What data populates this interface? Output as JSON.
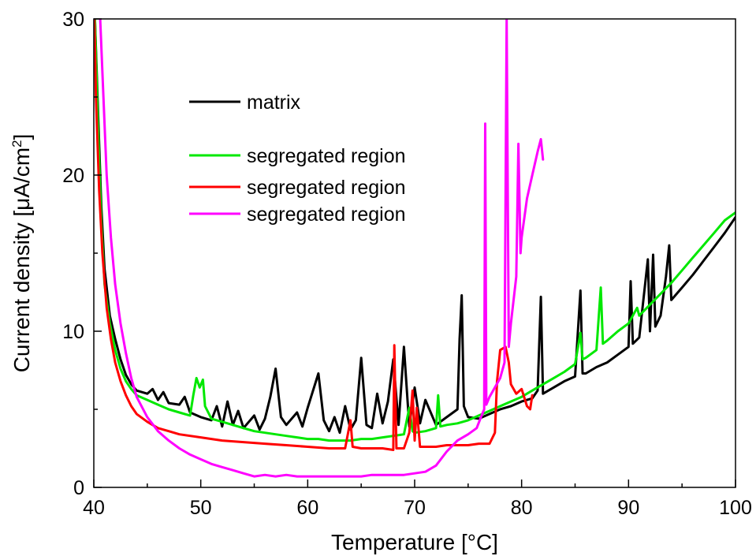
{
  "chart_data": {
    "type": "line",
    "xlabel": "Temperature [°C]",
    "ylabel": {
      "main": "Current density [μA/cm",
      "sup": "2",
      "end": "]"
    },
    "xlim": [
      40,
      100
    ],
    "ylim": [
      0,
      30
    ],
    "x_ticks": [
      40,
      50,
      60,
      70,
      80,
      90,
      100
    ],
    "y_ticks": [
      0,
      10,
      20,
      30
    ],
    "x_tick_labels": [
      "40",
      "50",
      "60",
      "70",
      "80",
      "90",
      "100"
    ],
    "y_tick_labels": [
      "0",
      "10",
      "20",
      "30"
    ],
    "grid": false,
    "legend_position": "upper-left-inside",
    "series": [
      {
        "name": "matrix",
        "color": "#000000",
        "points": [
          [
            40.1,
            30
          ],
          [
            40.4,
            24
          ],
          [
            40.7,
            18
          ],
          [
            41.0,
            14
          ],
          [
            41.5,
            11
          ],
          [
            42.0,
            9.5
          ],
          [
            42.5,
            8.2
          ],
          [
            43.0,
            7.2
          ],
          [
            43.5,
            6.6
          ],
          [
            44,
            6.2
          ],
          [
            45,
            6.0
          ],
          [
            45.5,
            6.3
          ],
          [
            46,
            5.6
          ],
          [
            46.5,
            6.1
          ],
          [
            47,
            5.4
          ],
          [
            48,
            5.3
          ],
          [
            48.5,
            5.8
          ],
          [
            49,
            4.8
          ],
          [
            50,
            4.5
          ],
          [
            51,
            4.3
          ],
          [
            51.5,
            5.2
          ],
          [
            52,
            3.9
          ],
          [
            52.5,
            5.5
          ],
          [
            53,
            4.0
          ],
          [
            53.5,
            4.9
          ],
          [
            54,
            3.8
          ],
          [
            55,
            4.6
          ],
          [
            55.5,
            3.7
          ],
          [
            56,
            4.4
          ],
          [
            56.5,
            5.8
          ],
          [
            57,
            7.6
          ],
          [
            57.5,
            4.5
          ],
          [
            58,
            4.0
          ],
          [
            59,
            4.8
          ],
          [
            59.5,
            3.9
          ],
          [
            60,
            5.1
          ],
          [
            61,
            7.3
          ],
          [
            61.5,
            4.3
          ],
          [
            62,
            3.6
          ],
          [
            62.5,
            4.5
          ],
          [
            63,
            3.5
          ],
          [
            63.5,
            5.2
          ],
          [
            64,
            3.7
          ],
          [
            64.5,
            4.3
          ],
          [
            65,
            8.3
          ],
          [
            65.5,
            4.0
          ],
          [
            66,
            3.8
          ],
          [
            66.5,
            6.0
          ],
          [
            67,
            4.1
          ],
          [
            67.5,
            5.5
          ],
          [
            68,
            8.2
          ],
          [
            68.5,
            4.0
          ],
          [
            69,
            9.0
          ],
          [
            69.5,
            3.9
          ],
          [
            70,
            6.4
          ],
          [
            70.5,
            4.1
          ],
          [
            71,
            5.6
          ],
          [
            72,
            4.0
          ],
          [
            73,
            4.5
          ],
          [
            74,
            5.0
          ],
          [
            74.2,
            9.5
          ],
          [
            74.4,
            12.3
          ],
          [
            74.6,
            5.2
          ],
          [
            75,
            4.5
          ],
          [
            76,
            4.4
          ],
          [
            77,
            4.7
          ],
          [
            78,
            5.0
          ],
          [
            79,
            5.2
          ],
          [
            80,
            5.5
          ],
          [
            81,
            5.7
          ],
          [
            81.5,
            6.2
          ],
          [
            81.8,
            12.2
          ],
          [
            82,
            6.0
          ],
          [
            83,
            6.4
          ],
          [
            84,
            6.8
          ],
          [
            85,
            7.1
          ],
          [
            85.5,
            12.6
          ],
          [
            85.7,
            7.3
          ],
          [
            86,
            7.3
          ],
          [
            87,
            7.7
          ],
          [
            88,
            8.0
          ],
          [
            89,
            8.5
          ],
          [
            90,
            9.0
          ],
          [
            90.2,
            13.2
          ],
          [
            90.4,
            9.2
          ],
          [
            91,
            9.6
          ],
          [
            91.8,
            14.6
          ],
          [
            92,
            10.0
          ],
          [
            92.3,
            14.9
          ],
          [
            92.5,
            10.3
          ],
          [
            93,
            11.0
          ],
          [
            93.5,
            13.5
          ],
          [
            93.8,
            15.5
          ],
          [
            94,
            12.0
          ],
          [
            95,
            12.8
          ],
          [
            96,
            13.6
          ],
          [
            97,
            14.5
          ],
          [
            98,
            15.4
          ],
          [
            99,
            16.3
          ],
          [
            100,
            17.3
          ]
        ]
      },
      {
        "name": "segregated region",
        "color": "#00e800",
        "points": [
          [
            40.1,
            30
          ],
          [
            40.4,
            23
          ],
          [
            40.7,
            17
          ],
          [
            41.0,
            13
          ],
          [
            41.5,
            10.5
          ],
          [
            42.0,
            8.8
          ],
          [
            42.5,
            7.6
          ],
          [
            43.0,
            6.8
          ],
          [
            43.5,
            6.3
          ],
          [
            44,
            5.9
          ],
          [
            45,
            5.6
          ],
          [
            46,
            5.3
          ],
          [
            47,
            5.0
          ],
          [
            48,
            4.8
          ],
          [
            49,
            4.6
          ],
          [
            49.3,
            5.9
          ],
          [
            49.6,
            7.0
          ],
          [
            49.9,
            6.4
          ],
          [
            50.2,
            6.9
          ],
          [
            50.4,
            5.2
          ],
          [
            51,
            4.4
          ],
          [
            52,
            4.2
          ],
          [
            53,
            4.0
          ],
          [
            54,
            3.8
          ],
          [
            55,
            3.6
          ],
          [
            56,
            3.5
          ],
          [
            57,
            3.4
          ],
          [
            58,
            3.3
          ],
          [
            59,
            3.2
          ],
          [
            60,
            3.1
          ],
          [
            61,
            3.1
          ],
          [
            62,
            3.0
          ],
          [
            63,
            3.0
          ],
          [
            64,
            3.0
          ],
          [
            65,
            3.1
          ],
          [
            66,
            3.1
          ],
          [
            67,
            3.2
          ],
          [
            68,
            3.3
          ],
          [
            69,
            3.4
          ],
          [
            69.5,
            5.1
          ],
          [
            69.8,
            3.6
          ],
          [
            70,
            3.5
          ],
          [
            71,
            3.6
          ],
          [
            72,
            3.8
          ],
          [
            72.2,
            5.9
          ],
          [
            72.4,
            3.9
          ],
          [
            73,
            4.0
          ],
          [
            74,
            4.1
          ],
          [
            75,
            4.3
          ],
          [
            76,
            4.6
          ],
          [
            77,
            4.9
          ],
          [
            78,
            5.2
          ],
          [
            79,
            5.5
          ],
          [
            80,
            5.8
          ],
          [
            81,
            6.2
          ],
          [
            82,
            6.6
          ],
          [
            83,
            7.0
          ],
          [
            84,
            7.4
          ],
          [
            85,
            7.9
          ],
          [
            85.5,
            9.9
          ],
          [
            85.7,
            8.2
          ],
          [
            86,
            8.3
          ],
          [
            87,
            8.8
          ],
          [
            87.4,
            12.8
          ],
          [
            87.6,
            9.2
          ],
          [
            88,
            9.4
          ],
          [
            89,
            10.0
          ],
          [
            90,
            10.5
          ],
          [
            90.8,
            11.5
          ],
          [
            91,
            11.0
          ],
          [
            92,
            11.7
          ],
          [
            93,
            12.4
          ],
          [
            94,
            13.1
          ],
          [
            95,
            13.9
          ],
          [
            96,
            14.7
          ],
          [
            97,
            15.5
          ],
          [
            98,
            16.3
          ],
          [
            99,
            17.1
          ],
          [
            100,
            17.6
          ]
        ]
      },
      {
        "name": "segregated region",
        "color": "#ff0000",
        "points": [
          [
            40.05,
            30
          ],
          [
            40.2,
            25
          ],
          [
            40.5,
            19
          ],
          [
            40.8,
            15
          ],
          [
            41.2,
            11.5
          ],
          [
            41.6,
            9.5
          ],
          [
            42.0,
            8.0
          ],
          [
            42.5,
            6.8
          ],
          [
            43.0,
            5.9
          ],
          [
            43.5,
            5.2
          ],
          [
            44,
            4.7
          ],
          [
            45,
            4.2
          ],
          [
            46,
            3.8
          ],
          [
            47,
            3.6
          ],
          [
            48,
            3.4
          ],
          [
            50,
            3.2
          ],
          [
            52,
            3.0
          ],
          [
            54,
            2.9
          ],
          [
            56,
            2.8
          ],
          [
            58,
            2.7
          ],
          [
            60,
            2.6
          ],
          [
            62,
            2.5
          ],
          [
            63.5,
            2.5
          ],
          [
            64,
            4.3
          ],
          [
            64.2,
            2.6
          ],
          [
            65,
            2.5
          ],
          [
            66,
            2.5
          ],
          [
            67,
            2.5
          ],
          [
            68,
            2.4
          ],
          [
            68.1,
            9.1
          ],
          [
            68.3,
            2.5
          ],
          [
            69,
            2.5
          ],
          [
            69.5,
            3.5
          ],
          [
            69.8,
            6.2
          ],
          [
            70,
            3.0
          ],
          [
            70.2,
            5.1
          ],
          [
            70.5,
            2.6
          ],
          [
            71,
            2.6
          ],
          [
            72,
            2.6
          ],
          [
            73,
            2.7
          ],
          [
            74,
            2.7
          ],
          [
            75,
            2.7
          ],
          [
            76,
            2.8
          ],
          [
            77,
            2.8
          ],
          [
            77.5,
            3.5
          ],
          [
            77.7,
            6.8
          ],
          [
            78,
            8.8
          ],
          [
            78.5,
            9.0
          ],
          [
            78.8,
            8.0
          ],
          [
            79,
            6.6
          ],
          [
            79.5,
            6.0
          ],
          [
            80,
            6.3
          ],
          [
            80.5,
            5.2
          ],
          [
            80.8,
            5.0
          ],
          [
            81,
            5.9
          ]
        ]
      },
      {
        "name": "segregated region",
        "color": "#ff00ff",
        "points": [
          [
            40.6,
            30
          ],
          [
            40.9,
            25
          ],
          [
            41.2,
            20
          ],
          [
            41.6,
            16
          ],
          [
            42.0,
            13
          ],
          [
            42.5,
            10.5
          ],
          [
            43.0,
            8.6
          ],
          [
            43.5,
            7.0
          ],
          [
            44,
            5.8
          ],
          [
            45,
            4.5
          ],
          [
            46,
            3.6
          ],
          [
            47,
            3.0
          ],
          [
            48,
            2.5
          ],
          [
            49,
            2.1
          ],
          [
            50,
            1.8
          ],
          [
            51,
            1.5
          ],
          [
            52,
            1.3
          ],
          [
            53,
            1.1
          ],
          [
            54,
            0.9
          ],
          [
            55,
            0.7
          ],
          [
            56,
            0.8
          ],
          [
            57,
            0.7
          ],
          [
            58,
            0.8
          ],
          [
            59,
            0.7
          ],
          [
            60,
            0.7
          ],
          [
            61,
            0.7
          ],
          [
            62,
            0.7
          ],
          [
            63,
            0.7
          ],
          [
            64,
            0.7
          ],
          [
            65,
            0.7
          ],
          [
            66,
            0.8
          ],
          [
            67,
            0.8
          ],
          [
            68,
            0.8
          ],
          [
            69,
            0.8
          ],
          [
            70,
            0.9
          ],
          [
            71,
            1.0
          ],
          [
            72,
            1.4
          ],
          [
            73,
            2.3
          ],
          [
            74,
            3.0
          ],
          [
            75,
            3.4
          ],
          [
            75.8,
            3.8
          ],
          [
            76.2,
            4.5
          ],
          [
            76.5,
            5.0
          ],
          [
            76.6,
            23.3
          ],
          [
            76.7,
            5.3
          ],
          [
            77,
            5.8
          ],
          [
            77.5,
            6.4
          ],
          [
            78,
            7.0
          ],
          [
            78.4,
            8.0
          ],
          [
            78.6,
            30
          ],
          [
            78.8,
            9.0
          ],
          [
            79,
            10.5
          ],
          [
            79.5,
            13.5
          ],
          [
            79.7,
            22.0
          ],
          [
            79.9,
            15.0
          ],
          [
            80,
            16.0
          ],
          [
            80.5,
            18.5
          ],
          [
            81,
            20.0
          ],
          [
            81.5,
            21.5
          ],
          [
            81.8,
            22.3
          ],
          [
            82,
            21.0
          ]
        ]
      }
    ]
  }
}
